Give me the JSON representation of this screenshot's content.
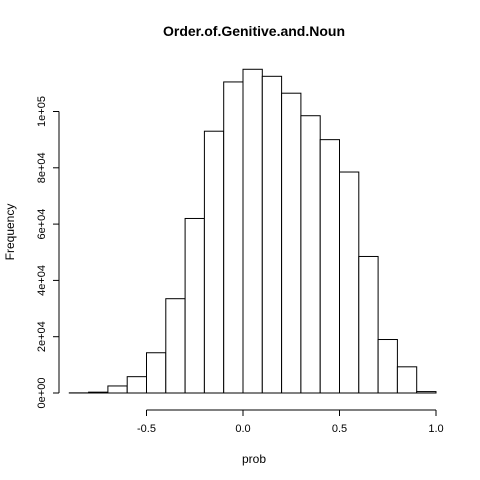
{
  "chart_data": {
    "type": "bar",
    "title": "Order.of.Genitive.and.Noun",
    "xlabel": "prob",
    "ylabel": "Frequency",
    "bin_edges": [
      -0.9,
      -0.8,
      -0.7,
      -0.6,
      -0.5,
      -0.4,
      -0.3,
      -0.2,
      -0.1,
      0.0,
      0.1,
      0.2,
      0.3,
      0.4,
      0.5,
      0.6,
      0.7,
      0.8,
      0.9,
      1.0
    ],
    "values": [
      50,
      300,
      2500,
      5800,
      14300,
      33500,
      62000,
      93000,
      110500,
      115000,
      112500,
      106500,
      98500,
      90000,
      78500,
      48500,
      19000,
      9300,
      500
    ],
    "x_ticks": [
      -0.5,
      0.0,
      0.5,
      1.0
    ],
    "x_tick_labels": [
      "-0.5",
      "0.0",
      "0.5",
      "1.0"
    ],
    "y_ticks": [
      0,
      20000,
      40000,
      60000,
      80000,
      100000
    ],
    "y_tick_labels": [
      "0e+00",
      "2e+04",
      "4e+04",
      "6e+04",
      "8e+04",
      "1e+05"
    ],
    "xlim": [
      -0.9,
      1.0
    ],
    "ylim": [
      0,
      115000
    ],
    "grid": false,
    "legend": "none"
  }
}
